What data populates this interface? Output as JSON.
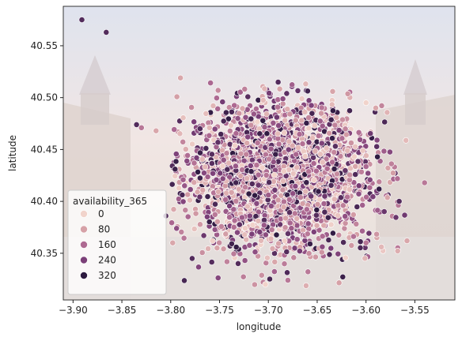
{
  "chart_data": {
    "type": "scatter",
    "title": "",
    "xlabel": "longitude",
    "ylabel": "latitude",
    "xlim": [
      -3.91,
      -3.509
    ],
    "ylim": [
      40.305,
      40.588
    ],
    "xticks": [
      -3.9,
      -3.85,
      -3.8,
      -3.75,
      -3.7,
      -3.65,
      -3.6,
      -3.55
    ],
    "xtick_labels": [
      "−3.90",
      "−3.85",
      "−3.80",
      "−3.75",
      "−3.70",
      "−3.65",
      "−3.60",
      "−3.55"
    ],
    "yticks": [
      40.35,
      40.4,
      40.45,
      40.5,
      40.55
    ],
    "ytick_labels": [
      "40.35",
      "40.40",
      "40.45",
      "40.50",
      "40.55"
    ],
    "hue_variable": "availability_365",
    "hue_range": [
      0,
      365
    ],
    "legend": {
      "title": "availability_365",
      "placement": "lower-left",
      "entries": [
        {
          "label": "0",
          "color": "#f1d3cb"
        },
        {
          "label": "80",
          "color": "#d6a1a7"
        },
        {
          "label": "160",
          "color": "#ae6a92"
        },
        {
          "label": "240",
          "color": "#7b3f78"
        },
        {
          "label": "320",
          "color": "#2d1a40"
        }
      ]
    },
    "background": "photo of Madrid Plaza Mayor (faded)",
    "grid": false,
    "cluster": {
      "description": "dense cloud of listings centered near Madrid",
      "center": [
        -3.69,
        40.425
      ],
      "spread": [
        0.045,
        0.035
      ],
      "approx_count": 2600
    },
    "points": [
      {
        "x": -3.891,
        "y": 40.575,
        "v": 320
      },
      {
        "x": -3.866,
        "y": 40.563,
        "v": 320
      },
      {
        "x": -3.79,
        "y": 40.519,
        "v": 80
      },
      {
        "x": -3.835,
        "y": 40.474,
        "v": 320
      },
      {
        "x": -3.83,
        "y": 40.471,
        "v": 160
      },
      {
        "x": -3.815,
        "y": 40.468,
        "v": 80
      },
      {
        "x": -3.77,
        "y": 40.47,
        "v": 320
      },
      {
        "x": -3.54,
        "y": 40.418,
        "v": 160
      },
      {
        "x": -3.558,
        "y": 40.362,
        "v": 80
      },
      {
        "x": -3.566,
        "y": 40.4,
        "v": 320
      },
      {
        "x": -3.798,
        "y": 40.36,
        "v": 80
      },
      {
        "x": -3.778,
        "y": 40.345,
        "v": 320
      },
      {
        "x": -3.68,
        "y": 40.324,
        "v": 160
      },
      {
        "x": -3.703,
        "y": 40.32,
        "v": 0
      },
      {
        "x": -3.6,
        "y": 40.36,
        "v": 160
      },
      {
        "x": -3.805,
        "y": 40.386,
        "v": 320
      },
      {
        "x": -3.794,
        "y": 40.374,
        "v": 240
      },
      {
        "x": -3.69,
        "y": 40.515,
        "v": 320
      },
      {
        "x": -3.6,
        "y": 40.495,
        "v": 0
      },
      {
        "x": -3.59,
        "y": 40.49,
        "v": 80
      }
    ]
  }
}
